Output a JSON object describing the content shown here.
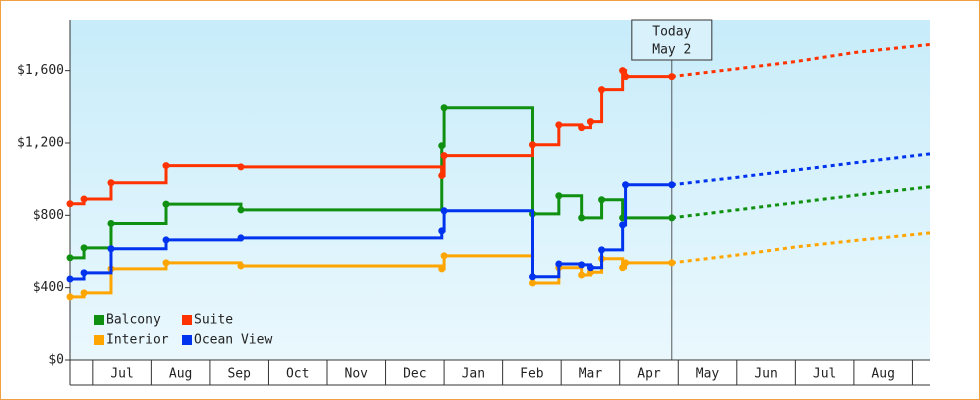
{
  "chart_data": {
    "type": "step",
    "xlim": [
      -0.39,
      14.3
    ],
    "xticks": [
      {
        "value": 0.5,
        "label": "Jul"
      },
      {
        "value": 1.5,
        "label": "Aug"
      },
      {
        "value": 2.5,
        "label": "Sep"
      },
      {
        "value": 3.5,
        "label": "Oct"
      },
      {
        "value": 4.5,
        "label": "Nov"
      },
      {
        "value": 5.5,
        "label": "Dec"
      },
      {
        "value": 6.5,
        "label": "Jan"
      },
      {
        "value": 7.5,
        "label": "Feb"
      },
      {
        "value": 8.5,
        "label": "Mar"
      },
      {
        "value": 9.5,
        "label": "Apr"
      },
      {
        "value": 10.5,
        "label": "May"
      },
      {
        "value": 11.5,
        "label": "Jun"
      },
      {
        "value": 12.5,
        "label": "Jul"
      },
      {
        "value": 13.5,
        "label": "Aug"
      }
    ],
    "ylim": [
      0,
      1880
    ],
    "yticks": [
      {
        "value": 0,
        "label": "$0"
      },
      {
        "value": 400,
        "label": "$400"
      },
      {
        "value": 800,
        "label": "$800"
      },
      {
        "value": 1200,
        "label": "$1,200"
      },
      {
        "value": 1600,
        "label": "$1,600"
      }
    ],
    "grid": false,
    "legend": "bottom-left",
    "annotation": {
      "x": 9.89,
      "text": [
        "Today",
        "May 2"
      ]
    },
    "series": [
      {
        "name": "Balcony",
        "color": "#109010",
        "x": [
          -0.39,
          -0.15,
          0.31,
          1.25,
          2.53,
          5.96,
          6.0,
          7.51,
          7.96,
          8.35,
          8.69,
          9.05,
          9.89
        ],
        "values": [
          565,
          620,
          755,
          862,
          830,
          1185,
          1395,
          808,
          908,
          786,
          886,
          786,
          786
        ],
        "forecast": {
          "x": [
            9.89,
            11,
            12,
            13,
            14.3
          ],
          "values": [
            786,
            830,
            870,
            910,
            958
          ]
        }
      },
      {
        "name": "Suite",
        "color": "#ff3300",
        "x": [
          -0.39,
          -0.15,
          0.31,
          1.25,
          2.53,
          5.96,
          6.0,
          7.51,
          7.96,
          8.35,
          8.5,
          8.69,
          9.05,
          9.1,
          9.89
        ],
        "values": [
          864,
          890,
          980,
          1075,
          1068,
          1020,
          1130,
          1190,
          1300,
          1285,
          1318,
          1495,
          1600,
          1567,
          1567
        ],
        "forecast": {
          "x": [
            9.89,
            11,
            12,
            13,
            14.3
          ],
          "values": [
            1567,
            1610,
            1650,
            1700,
            1745
          ]
        }
      },
      {
        "name": "Interior",
        "color": "#ffa500",
        "x": [
          -0.39,
          -0.15,
          0.31,
          1.25,
          2.53,
          5.96,
          6.0,
          7.51,
          7.96,
          8.35,
          8.5,
          8.69,
          9.05,
          9.1,
          9.89
        ],
        "values": [
          349,
          371,
          504,
          537,
          520,
          504,
          576,
          426,
          510,
          470,
          485,
          560,
          510,
          537,
          537
        ],
        "forecast": {
          "x": [
            9.89,
            11,
            12,
            13,
            14.3
          ],
          "values": [
            537,
            580,
            625,
            660,
            703
          ]
        }
      },
      {
        "name": "Ocean View",
        "color": "#0033ee",
        "x": [
          -0.39,
          -0.15,
          0.31,
          1.25,
          2.53,
          5.96,
          6.0,
          7.51,
          7.96,
          8.35,
          8.5,
          8.69,
          9.05,
          9.1,
          9.89
        ],
        "values": [
          448,
          482,
          615,
          664,
          675,
          714,
          825,
          460,
          531,
          526,
          510,
          609,
          747,
          969,
          969
        ],
        "forecast": {
          "x": [
            9.89,
            11,
            12,
            13,
            14.3
          ],
          "values": [
            969,
            1010,
            1050,
            1090,
            1140
          ]
        }
      }
    ]
  }
}
